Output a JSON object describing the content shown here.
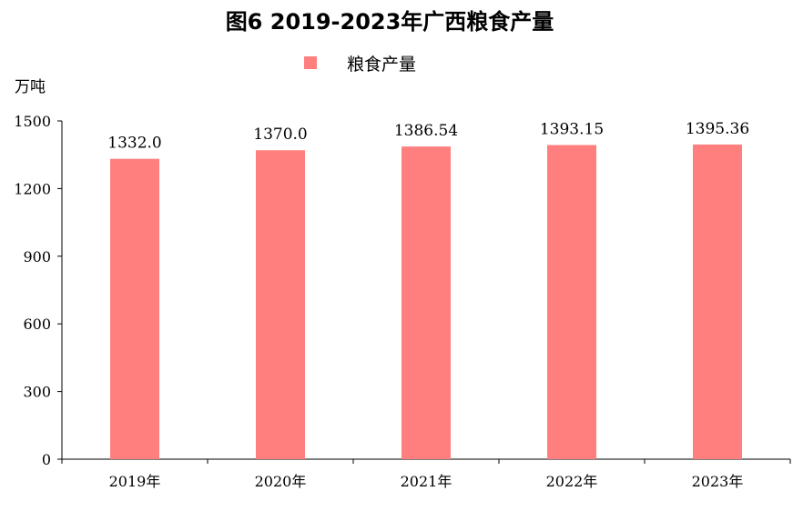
{
  "chart_data": {
    "type": "bar",
    "title": "图6 2019-2023年广西粮食产量",
    "ylabel": "万吨",
    "xlabel": "",
    "categories": [
      "2019年",
      "2020年",
      "2021年",
      "2022年",
      "2023年"
    ],
    "series": [
      {
        "name": "粮食产量",
        "values": [
          1332.0,
          1370.0,
          1386.54,
          1393.15,
          1395.36
        ],
        "labels": [
          "1332.0",
          "1370.0",
          "1386.54",
          "1393.15",
          "1395.36"
        ],
        "color": "#ff7f7f"
      }
    ],
    "ylim": [
      0,
      1500
    ],
    "yticks": [
      0,
      300,
      600,
      900,
      1200,
      1500
    ],
    "grid": false,
    "legend_position": "top-center"
  }
}
